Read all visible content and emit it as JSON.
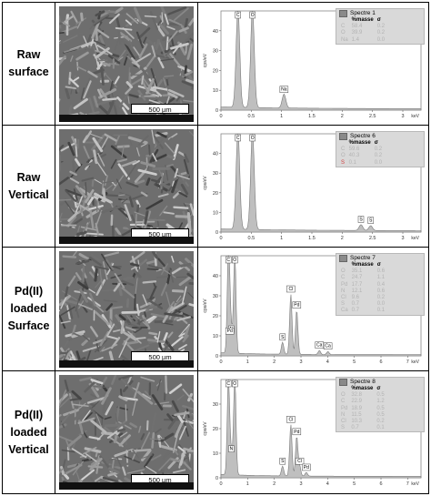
{
  "rows": [
    {
      "label": "Raw surface",
      "scale_bar": "500 µm",
      "spectrum": {
        "title": "Spectre 1",
        "col_mass": "%masse",
        "col_sigma": "σ",
        "table": [
          [
            "C",
            "58.4",
            "0.2"
          ],
          [
            "O",
            "39.9",
            "0.2"
          ],
          [
            "Na",
            "1.4",
            "0.0"
          ]
        ],
        "element_colors": [
          "#b3b3b3",
          "#b3b3b3",
          "#b3b3b3"
        ]
      }
    },
    {
      "label": "Raw Vertical",
      "scale_bar": "500 µm",
      "spectrum": {
        "title": "Spectre 6",
        "col_mass": "%masse",
        "col_sigma": "σ",
        "table": [
          [
            "C",
            "59.6",
            "0.2"
          ],
          [
            "O",
            "40.3",
            "0.2"
          ],
          [
            "S",
            "0.1",
            "0.0"
          ]
        ],
        "element_colors": [
          "#b3b3b3",
          "#b3b3b3",
          "#d04040"
        ]
      }
    },
    {
      "label": "Pd(II) loaded Surface",
      "scale_bar": "500 µm",
      "spectrum": {
        "title": "Spectre 7",
        "col_mass": "%masse",
        "col_sigma": "σ",
        "table": [
          [
            "O",
            "35.1",
            "0.6"
          ],
          [
            "C",
            "24.7",
            "1.1"
          ],
          [
            "Pd",
            "17.7",
            "0.4"
          ],
          [
            "N",
            "12.1",
            "0.6"
          ],
          [
            "Cl",
            "9.6",
            "0.2"
          ],
          [
            "S",
            "0.7",
            "0.0"
          ],
          [
            "Ca",
            "0.7",
            "0.1"
          ]
        ],
        "element_colors": [
          "#b3b3b3",
          "#b3b3b3",
          "#b3b3b3",
          "#b3b3b3",
          "#b3b3b3",
          "#b3b3b3",
          "#b3b3b3"
        ]
      }
    },
    {
      "label": "Pd(II) loaded Vertical",
      "scale_bar": "500 µm",
      "spectrum": {
        "title": "Spectre 8",
        "col_mass": "%masse",
        "col_sigma": "σ",
        "table": [
          [
            "O",
            "32.8",
            "0.5"
          ],
          [
            "C",
            "22.9",
            "1.2"
          ],
          [
            "Pd",
            "18.9",
            "0.5"
          ],
          [
            "N",
            "11.5",
            "0.5"
          ],
          [
            "Cl",
            "10.3",
            "0.2"
          ],
          [
            "S",
            "0.7",
            "0.1"
          ]
        ],
        "element_colors": [
          "#b3b3b3",
          "#b3b3b3",
          "#b3b3b3",
          "#b3b3b3",
          "#b3b3b3",
          "#b3b3b3"
        ]
      }
    }
  ],
  "chart_data": [
    {
      "type": "area",
      "ylabel": "cps/eV",
      "xlabel": "keV",
      "x_ticks": [
        "0",
        "0.5",
        "1",
        "1.5",
        "2",
        "2.5",
        "3"
      ],
      "y_ticks": [
        "0",
        "10",
        "20",
        "30",
        "40"
      ],
      "xlim": [
        0,
        3.3
      ],
      "ylim": [
        0,
        50
      ],
      "peaks": [
        {
          "label": "C",
          "x": 0.28,
          "y": 50
        },
        {
          "label": "O",
          "x": 0.52,
          "y": 50
        },
        {
          "label": "Na",
          "x": 1.04,
          "y": 7
        }
      ]
    },
    {
      "type": "area",
      "ylabel": "cps/eV",
      "xlabel": "keV",
      "x_ticks": [
        "0",
        "0.5",
        "1",
        "1.5",
        "2",
        "2.5",
        "3"
      ],
      "y_ticks": [
        "0",
        "10",
        "20",
        "30",
        "40"
      ],
      "xlim": [
        0,
        3.3
      ],
      "ylim": [
        0,
        50
      ],
      "peaks": [
        {
          "label": "C",
          "x": 0.28,
          "y": 50
        },
        {
          "label": "O",
          "x": 0.52,
          "y": 50
        },
        {
          "label": "S",
          "x": 2.31,
          "y": 3
        },
        {
          "label": "S",
          "x": 2.47,
          "y": 2.5
        }
      ]
    },
    {
      "type": "area",
      "ylabel": "cps/eV",
      "xlabel": "keV",
      "x_ticks": [
        "0",
        "1",
        "2",
        "3",
        "4",
        "5",
        "6",
        "7"
      ],
      "y_ticks": [
        "0",
        "10",
        "20",
        "30",
        "40"
      ],
      "xlim": [
        0,
        7.5
      ],
      "ylim": [
        0,
        50
      ],
      "peaks": [
        {
          "label": "C",
          "x": 0.28,
          "y": 50
        },
        {
          "label": "O",
          "x": 0.52,
          "y": 50
        },
        {
          "label": "N",
          "x": 0.39,
          "y": 10
        },
        {
          "label": "Pd",
          "x": 0.33,
          "y": 9
        },
        {
          "label": "Cl",
          "x": 2.62,
          "y": 30
        },
        {
          "label": "Pd",
          "x": 2.84,
          "y": 22
        },
        {
          "label": "S",
          "x": 2.31,
          "y": 6
        },
        {
          "label": "Ca",
          "x": 3.69,
          "y": 2
        },
        {
          "label": "Ca",
          "x": 4.01,
          "y": 1.5
        }
      ]
    },
    {
      "type": "area",
      "ylabel": "cps/eV",
      "xlabel": "keV",
      "x_ticks": [
        "0",
        "1",
        "2",
        "3",
        "4",
        "5",
        "6",
        "7"
      ],
      "y_ticks": [
        "0",
        "10",
        "20",
        "30"
      ],
      "xlim": [
        0,
        7.5
      ],
      "ylim": [
        0,
        40
      ],
      "peaks": [
        {
          "label": "C",
          "x": 0.28,
          "y": 40
        },
        {
          "label": "O",
          "x": 0.52,
          "y": 40
        },
        {
          "label": "N",
          "x": 0.39,
          "y": 9
        },
        {
          "label": "Cl",
          "x": 2.62,
          "y": 21
        },
        {
          "label": "Pd",
          "x": 2.84,
          "y": 16
        },
        {
          "label": "S",
          "x": 2.31,
          "y": 4
        },
        {
          "label": "Cl",
          "x": 2.95,
          "y": 4
        },
        {
          "label": "Pd",
          "x": 3.2,
          "y": 1.5
        }
      ]
    }
  ]
}
